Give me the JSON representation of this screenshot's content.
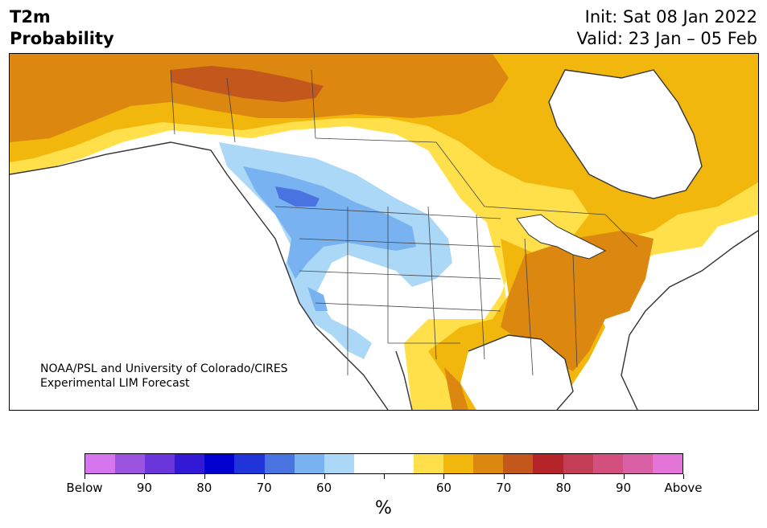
{
  "header": {
    "variable": "T2m",
    "product": "Probability",
    "init": "Init: Sat 08 Jan 2022",
    "valid": "Valid: 23 Jan – 05 Feb"
  },
  "map": {
    "credit_line1": "NOAA/PSL and University of Colorado/CIRES",
    "credit_line2": "Experimental LIM Forecast",
    "region": "North America",
    "colors": {
      "land_outline": "#333333",
      "below_60": "#acd8f8",
      "below_70": "#78b2f0",
      "below_80": "#4a73e2",
      "above_60": "#ffe04a",
      "above_70": "#f2b70c",
      "above_80": "#dc870f",
      "above_90": "#c4571b",
      "neutral": "#ffffff"
    }
  },
  "colorbar": {
    "colors": [
      "#d676ee",
      "#9b54e0",
      "#6a36dc",
      "#3318d6",
      "#0000cf",
      "#2034d9",
      "#4a73e2",
      "#78b2f0",
      "#acd8f8",
      "#ffffff",
      "#ffffff",
      "#ffe04a",
      "#f2b70c",
      "#dc870f",
      "#c4571b",
      "#b42428",
      "#c43d56",
      "#d34f7e",
      "#da60a6",
      "#e474d8"
    ],
    "labels": [
      "Below",
      "90",
      "80",
      "70",
      "60",
      "",
      "60",
      "70",
      "80",
      "90",
      "Above"
    ],
    "unit": "%"
  }
}
